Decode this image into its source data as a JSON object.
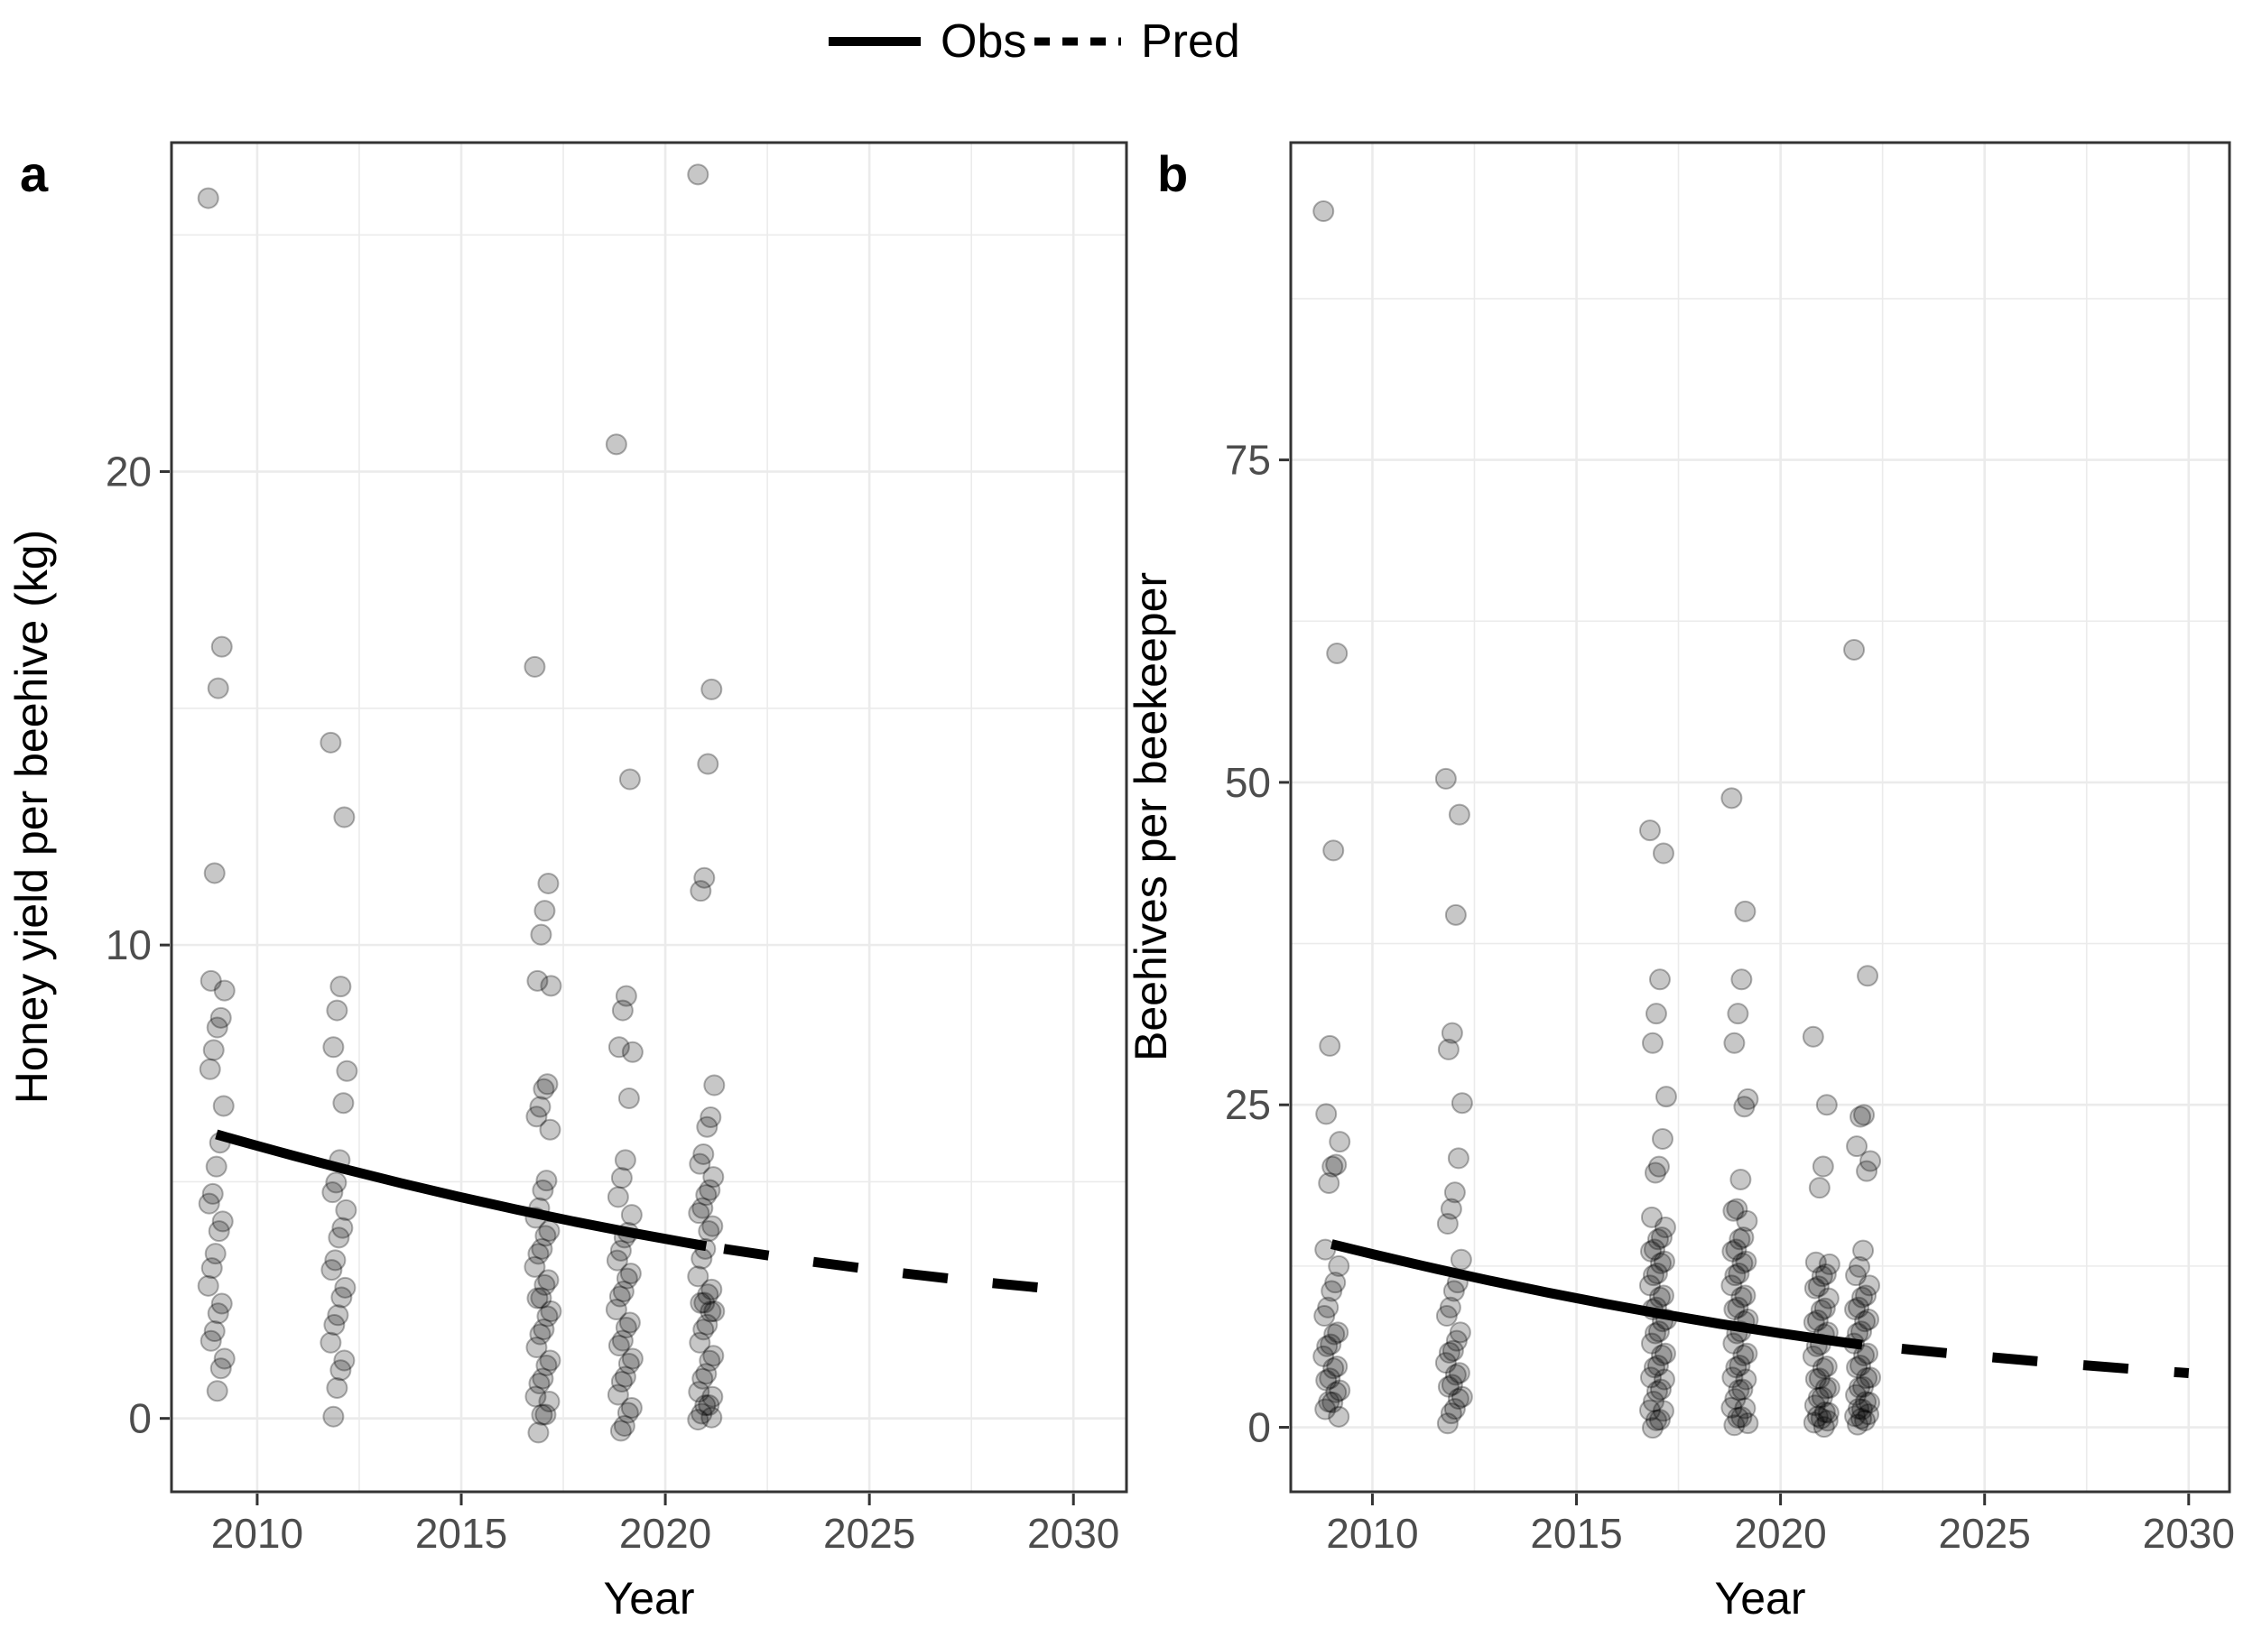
{
  "legend": {
    "obs_label": "Obs",
    "pred_label": "Pred"
  },
  "colors": {
    "background": "#ffffff",
    "gridline": "#ebebeb",
    "panel_border": "#333333",
    "tick_mark": "#333333",
    "tick_label": "#4d4d4d",
    "line": "#000000",
    "point_fill": "#000000"
  },
  "chart_data": [
    {
      "type": "scatter",
      "panel": "a",
      "tag": "a",
      "xlabel": "Year",
      "ylabel": "Honey yield per beehive (kg)",
      "xticks": [
        2010,
        2015,
        2020,
        2025,
        2030
      ],
      "yticks": [
        0,
        10,
        20
      ],
      "xlim": [
        2007.9,
        2031.3
      ],
      "ylim": [
        -1.55,
        26.95
      ],
      "grid": true,
      "legend_position": "top",
      "series": [
        {
          "name": "Obs",
          "type": "line",
          "style": "solid",
          "x": [
            2009,
            2015,
            2021
          ],
          "y": [
            6.0,
            4.67,
            3.64
          ]
        },
        {
          "name": "Pred",
          "type": "line",
          "style": "dashed",
          "x": [
            2021,
            2025.5,
            2030
          ],
          "y": [
            3.64,
            3.1,
            2.7
          ]
        },
        {
          "name": "observations",
          "type": "jittered-points",
          "groups": [
            {
              "year": 2009,
              "values": [
                25.7,
                16.3,
                15.5,
                11.5,
                9.3,
                9.0,
                8.5,
                8.2,
                7.8,
                7.3,
                6.6,
                5.9,
                5.3,
                4.8,
                4.5,
                4.2,
                3.9,
                3.5,
                3.1,
                2.8,
                2.5,
                2.2,
                1.9,
                1.6,
                1.3,
                1.0,
                0.6
              ]
            },
            {
              "year": 2012,
              "values": [
                14.2,
                12.7,
                9.2,
                8.6,
                7.9,
                7.3,
                6.7,
                5.4,
                5.0,
                4.7,
                4.4,
                4.1,
                3.8,
                3.4,
                3.1,
                2.8,
                2.5,
                2.2,
                1.9,
                1.6,
                1.3,
                1.0,
                0.7,
                0.0
              ]
            },
            {
              "year": 2017,
              "values": [
                15.8,
                11.3,
                10.8,
                10.2,
                9.3,
                9.1,
                7.1,
                6.9,
                6.6,
                6.3,
                6.1,
                5.1,
                4.8,
                4.5,
                4.2,
                4.0,
                3.8,
                3.6,
                3.4,
                3.2,
                3.0,
                2.8,
                2.6,
                2.5,
                2.3,
                2.1,
                1.9,
                1.7,
                1.5,
                1.3,
                1.1,
                0.9,
                0.7,
                0.5,
                0.3,
                0.1,
                0.0,
                -0.3
              ]
            },
            {
              "year": 2019,
              "values": [
                20.5,
                13.5,
                9.0,
                8.6,
                7.9,
                7.7,
                6.8,
                5.4,
                5.1,
                4.6,
                4.3,
                4.0,
                3.8,
                3.6,
                3.3,
                3.1,
                2.9,
                2.7,
                2.5,
                2.3,
                2.1,
                1.9,
                1.7,
                1.5,
                1.3,
                1.1,
                0.9,
                0.7,
                0.5,
                0.3,
                0.1,
                -0.1,
                -0.3
              ]
            },
            {
              "year": 2021,
              "values": [
                26.2,
                15.4,
                13.9,
                11.4,
                11.2,
                7.0,
                6.4,
                6.1,
                5.6,
                5.3,
                5.1,
                4.9,
                4.7,
                4.5,
                4.3,
                4.1,
                3.9,
                3.6,
                3.3,
                3.0,
                2.8,
                2.6,
                2.5,
                2.4,
                2.3,
                2.2,
                2.0,
                1.8,
                1.6,
                1.4,
                1.2,
                1.0,
                0.8,
                0.6,
                0.4,
                0.3,
                0.2,
                0.1,
                0.05,
                0.0
              ]
            }
          ]
        }
      ]
    },
    {
      "type": "scatter",
      "panel": "b",
      "tag": "b",
      "xlabel": "Year",
      "ylabel": "Beehives per beekeeper",
      "xticks": [
        2010,
        2015,
        2020,
        2025,
        2030
      ],
      "yticks": [
        0,
        25,
        50,
        75
      ],
      "xlim": [
        2008.0,
        2031.0
      ],
      "ylim": [
        -5.0,
        99.6
      ],
      "grid": true,
      "legend_position": "top",
      "series": [
        {
          "name": "Obs",
          "type": "line",
          "style": "solid",
          "x": [
            2009,
            2015.5,
            2022
          ],
          "y": [
            14.2,
            9.7,
            6.4
          ]
        },
        {
          "name": "Pred",
          "type": "line",
          "style": "dashed",
          "x": [
            2022,
            2026,
            2030
          ],
          "y": [
            6.4,
            5.2,
            4.2
          ]
        },
        {
          "name": "observations",
          "type": "jittered-points",
          "groups": [
            {
              "year": 2009,
              "values": [
                94,
                60,
                45,
                29.5,
                24.5,
                22,
                20.5,
                20,
                19,
                13.5,
                12.5,
                11.5,
                10.5,
                9.5,
                8.5,
                7.5,
                7,
                6.5,
                6,
                5.5,
                5,
                4.5,
                4,
                3.5,
                3,
                2.5,
                2,
                1.7,
                1.4,
                1.1
              ]
            },
            {
              "year": 2012,
              "values": [
                50,
                47.5,
                40,
                30.5,
                29.5,
                25,
                21,
                18,
                17,
                15.5,
                13,
                11.5,
                10.5,
                9.5,
                8.5,
                7.5,
                6.5,
                6,
                5.5,
                5,
                4.5,
                4,
                3.5,
                3,
                2.5,
                2,
                1.5,
                0.8,
                0.3
              ]
            },
            {
              "year": 2017,
              "values": [
                46,
                44.5,
                35,
                32,
                30,
                25.5,
                22.5,
                20,
                19.8,
                16,
                15.5,
                15,
                14.5,
                14,
                13.5,
                13,
                12.5,
                12,
                11.5,
                11,
                10.5,
                10,
                9.5,
                9,
                8.5,
                8,
                7.5,
                7,
                6.5,
                6,
                5.5,
                5,
                4.5,
                4,
                3.5,
                3,
                2.5,
                2,
                1.6,
                1.2,
                0.8,
                0.4,
                0.1
              ]
            },
            {
              "year": 2019,
              "values": [
                48.5,
                40,
                35,
                32,
                30,
                25.3,
                25,
                19,
                17,
                16.5,
                16,
                15,
                14.5,
                14,
                13.5,
                13,
                12.5,
                12,
                11.5,
                11,
                10.5,
                10,
                9.5,
                9,
                8.5,
                8,
                7.5,
                7,
                6.5,
                6,
                5.5,
                5,
                4.5,
                4,
                3.5,
                3,
                2.6,
                2.2,
                1.8,
                1.4,
                1.0,
                0.6,
                0.3,
                0.1
              ]
            },
            {
              "year": 2021,
              "values": [
                30,
                25,
                20.5,
                18.5,
                13,
                12.5,
                12,
                11.5,
                11,
                10.5,
                10,
                9.5,
                9,
                8.5,
                8,
                7.5,
                7,
                6.5,
                6,
                5.5,
                5,
                4.5,
                4,
                3.6,
                3.2,
                2.8,
                2.4,
                2.0,
                1.7,
                1.4,
                1.1,
                0.9,
                0.7,
                0.5,
                0.3,
                0.1
              ]
            },
            {
              "year": 2022,
              "values": [
                60,
                35,
                24.5,
                24,
                22,
                20.5,
                20,
                13.5,
                12.5,
                11.5,
                11,
                10.5,
                10,
                9.5,
                9,
                8.5,
                8,
                7.5,
                7,
                6.5,
                6,
                5.5,
                5,
                4.5,
                4,
                3.6,
                3.2,
                2.8,
                2.5,
                2.2,
                1.9,
                1.6,
                1.3,
                1.0,
                0.8,
                0.6,
                0.4,
                0.2
              ]
            }
          ]
        }
      ]
    }
  ]
}
